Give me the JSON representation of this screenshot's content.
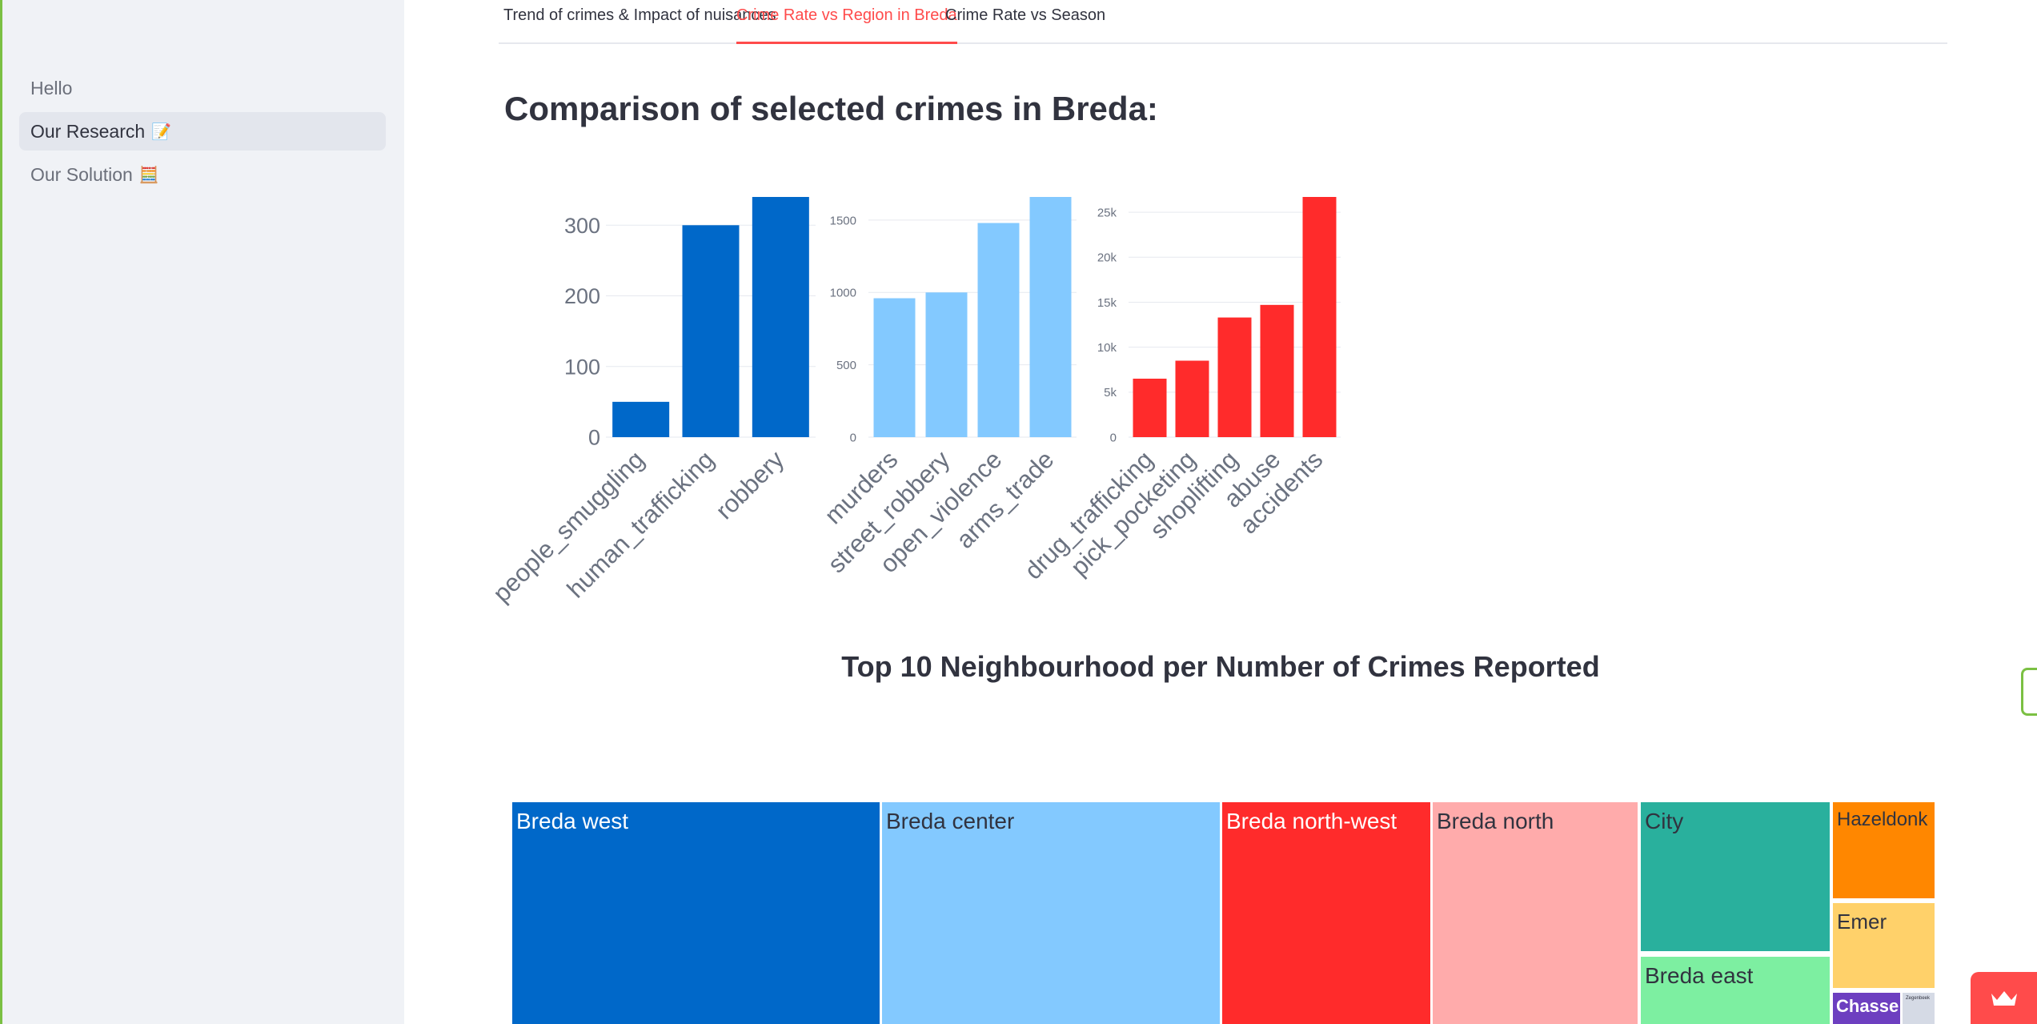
{
  "sidebar": {
    "items": [
      {
        "label": "Hello",
        "emoji": ""
      },
      {
        "label": "Our Research",
        "emoji": "📝"
      },
      {
        "label": "Our Solution",
        "emoji": "🧮"
      }
    ]
  },
  "tabs": [
    {
      "label": "Trend of crimes & Impact of nuisances"
    },
    {
      "label": "Crime Rate vs Region in Breda"
    },
    {
      "label": "Crime Rate vs Season"
    }
  ],
  "page": {
    "heading": "Comparison of selected crimes in Breda:",
    "treemap_title": "Top 10 Neighbourhood per Number of Crimes Reported"
  },
  "colors": {
    "accent": "#ff4b4b",
    "series_dark_blue": "#0068c9",
    "series_light_blue": "#83c9ff",
    "series_red": "#ff2b2b"
  },
  "chart_data": [
    {
      "type": "bar",
      "categories": [
        "people_smuggling",
        "human_trafficking",
        "robbery"
      ],
      "values": [
        50,
        300,
        340
      ],
      "ylim": [
        0,
        340
      ],
      "ticks": [
        0,
        100,
        200,
        300
      ],
      "tick_labels": [
        "0",
        "100",
        "200",
        "300"
      ],
      "color": "#0068c9"
    },
    {
      "type": "bar",
      "categories": [
        "murders",
        "street_robbery",
        "open_violence",
        "arms_trade"
      ],
      "values": [
        960,
        1000,
        1480,
        1660
      ],
      "ylim": [
        0,
        1660
      ],
      "ticks": [
        0,
        500,
        1000,
        1500
      ],
      "tick_labels": [
        "0",
        "500",
        "1000",
        "1500"
      ],
      "color": "#83c9ff"
    },
    {
      "type": "bar",
      "categories": [
        "drug_trafficking",
        "pick_pocketing",
        "shoplifting",
        "abuse",
        "accidents"
      ],
      "values": [
        6500,
        8500,
        13300,
        14700,
        26700
      ],
      "ylim": [
        0,
        26700
      ],
      "ticks": [
        0,
        5000,
        10000,
        15000,
        20000,
        25000
      ],
      "tick_labels": [
        "0",
        "5k",
        "10k",
        "15k",
        "20k",
        "25k"
      ],
      "color": "#ff2b2b"
    }
  ],
  "treemap": {
    "title": "Top 10 Neighbourhood per Number of Crimes Reported",
    "nodes": [
      {
        "label": "Breda west",
        "color": "#0068c9"
      },
      {
        "label": "Breda center",
        "color": "#83c9ff"
      },
      {
        "label": "Breda north-west",
        "color": "#ff2b2b"
      },
      {
        "label": "Breda north",
        "color": "#ffabab"
      },
      {
        "label": "City",
        "color": "#29b09d"
      },
      {
        "label": "Breda east",
        "color": "#7defa1"
      },
      {
        "label": "Hazeldonk",
        "color": "#ff8700"
      },
      {
        "label": "Emer",
        "color": "#ffd16a"
      },
      {
        "label": "Chasse",
        "color": "#6d3fc0"
      },
      {
        "label": "Zegenbeek",
        "color": "#d5dae5"
      }
    ]
  }
}
